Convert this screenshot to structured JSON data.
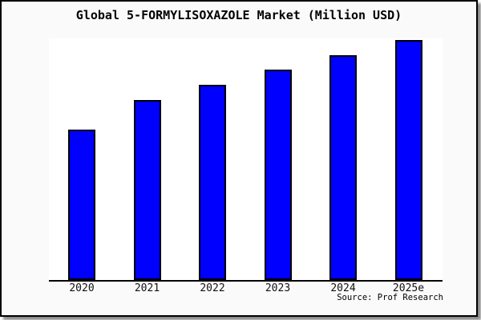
{
  "chart_data": {
    "type": "bar",
    "title": "Global 5-FORMYLISOXAZOLE Market (Million USD)",
    "categories": [
      "2020",
      "2021",
      "2022",
      "2023",
      "2024",
      "2025e"
    ],
    "values": [
      62.7,
      75.0,
      81.3,
      87.7,
      93.7,
      100.0
    ],
    "xlabel": "",
    "ylabel": "",
    "ylim": [
      0,
      100
    ],
    "y_axis_visible": false,
    "grid": false,
    "legend": "none",
    "bar_color": "#0000ff",
    "bar_border_color": "#000000",
    "plot_background": "#ffffff",
    "canvas_background": "#fafafa",
    "frame_border_color": "#000000"
  },
  "footer": {
    "source": "Source: Prof Research"
  }
}
